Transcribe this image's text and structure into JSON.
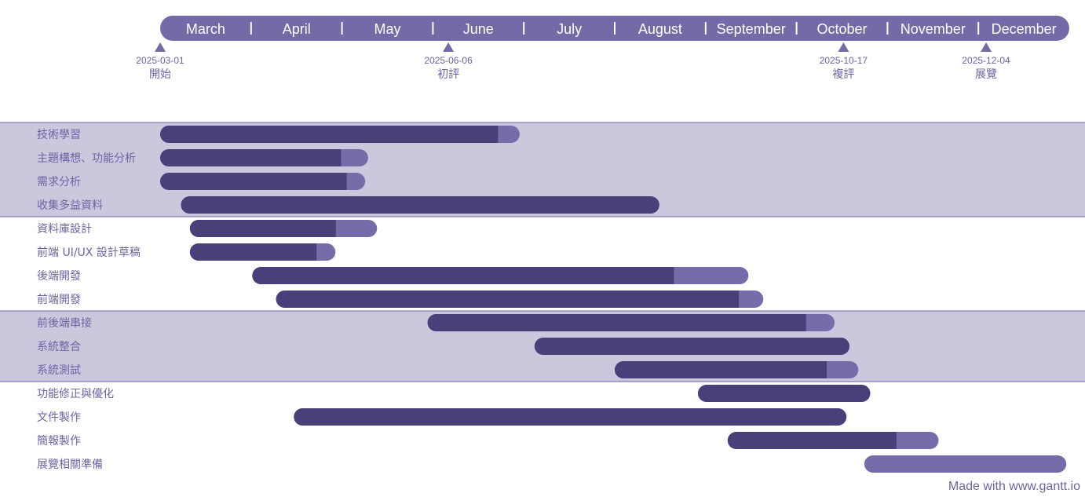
{
  "colors": {
    "header_bar": "#746aa8",
    "band": "#cbc7dd",
    "band_line": "#6e63a3",
    "bar_done": "#4a3f78",
    "bar_rest": "#776ca9",
    "text": "#6e63a3"
  },
  "chart_data": {
    "type": "gantt",
    "months": [
      "March",
      "April",
      "May",
      "June",
      "July",
      "August",
      "September",
      "October",
      "November",
      "December"
    ],
    "milestones": [
      {
        "date": "2025-03-01",
        "label": "開始"
      },
      {
        "date": "2025-06-06",
        "label": "初評"
      },
      {
        "date": "2025-10-17",
        "label": "複評"
      },
      {
        "date": "2025-12-04",
        "label": "展覽"
      }
    ],
    "groups": [
      {
        "shaded": true,
        "tasks": [
          {
            "name": "技術學習",
            "start": "2025-03-01",
            "end": "2025-06-30",
            "progress": 0.94
          },
          {
            "name": "主題構想、功能分析",
            "start": "2025-03-01",
            "end": "2025-05-10",
            "progress": 0.87
          },
          {
            "name": "需求分析",
            "start": "2025-03-01",
            "end": "2025-05-09",
            "progress": 0.91
          },
          {
            "name": "收集多益資料",
            "start": "2025-03-08",
            "end": "2025-08-16",
            "progress": 1.0
          }
        ]
      },
      {
        "shaded": false,
        "tasks": [
          {
            "name": "資料庫設計",
            "start": "2025-03-11",
            "end": "2025-05-13",
            "progress": 0.78
          },
          {
            "name": "前端 UI/UX 設計草稿",
            "start": "2025-03-11",
            "end": "2025-04-29",
            "progress": 0.87
          },
          {
            "name": "後端開發",
            "start": "2025-04-01",
            "end": "2025-09-15",
            "progress": 0.85
          },
          {
            "name": "前端開發",
            "start": "2025-04-09",
            "end": "2025-09-20",
            "progress": 0.95
          }
        ]
      },
      {
        "shaded": true,
        "tasks": [
          {
            "name": "前後端串接",
            "start": "2025-05-30",
            "end": "2025-10-14",
            "progress": 0.93
          },
          {
            "name": "系統整合",
            "start": "2025-07-05",
            "end": "2025-10-19",
            "progress": 1.0
          },
          {
            "name": "系統測試",
            "start": "2025-08-01",
            "end": "2025-10-22",
            "progress": 0.87
          }
        ]
      },
      {
        "shaded": false,
        "tasks": [
          {
            "name": "功能修正與優化",
            "start": "2025-08-29",
            "end": "2025-10-26",
            "progress": 1.0
          },
          {
            "name": "文件製作",
            "start": "2025-04-15",
            "end": "2025-10-18",
            "progress": 1.0
          },
          {
            "name": "簡報製作",
            "start": "2025-09-08",
            "end": "2025-11-18",
            "progress": 0.8
          },
          {
            "name": "展覽相關準備",
            "start": "2025-10-24",
            "end": "2025-12-31",
            "progress": 0.0
          }
        ]
      }
    ]
  },
  "footer": "Made with www.gantt.io"
}
